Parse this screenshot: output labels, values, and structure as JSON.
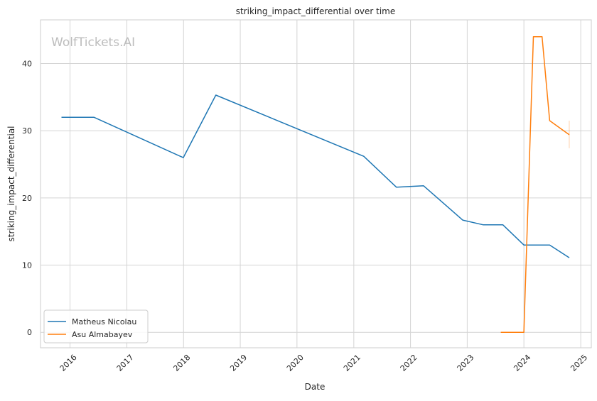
{
  "watermark": "WolfTickets.AI",
  "chart_data": {
    "type": "line",
    "title": "striking_impact_differential over time",
    "xlabel": "Date",
    "ylabel": "striking_impact_differential",
    "xlim": [
      "2015-06-25",
      "2025-03-10"
    ],
    "ylim": [
      -2.3,
      46.5
    ],
    "x_ticks": [
      "2016-01-01",
      "2017-01-01",
      "2018-01-01",
      "2019-01-01",
      "2020-01-01",
      "2021-01-01",
      "2022-01-01",
      "2023-01-01",
      "2024-01-01",
      "2025-01-01"
    ],
    "x_tick_labels": [
      "2016",
      "2017",
      "2018",
      "2019",
      "2020",
      "2021",
      "2022",
      "2023",
      "2024",
      "2025"
    ],
    "y_ticks": [
      0,
      10,
      20,
      30,
      40
    ],
    "y_tick_labels": [
      "0",
      "10",
      "20",
      "30",
      "40"
    ],
    "grid": true,
    "legend_position": "lower-left",
    "series": [
      {
        "name": "Matheus Nicolau",
        "color": "#1f77b4",
        "points": [
          [
            "2015-11-07",
            32.0
          ],
          [
            "2016-06-04",
            32.0
          ],
          [
            "2017-12-30",
            26.0
          ],
          [
            "2018-07-28",
            35.3
          ],
          [
            "2021-03-06",
            26.2
          ],
          [
            "2021-10-02",
            21.6
          ],
          [
            "2022-03-26",
            21.8
          ],
          [
            "2022-12-03",
            16.7
          ],
          [
            "2023-04-15",
            16.0
          ],
          [
            "2023-08-19",
            16.0
          ],
          [
            "2024-01-01",
            13.0
          ],
          [
            "2024-06-15",
            13.0
          ],
          [
            "2024-10-19",
            11.1
          ]
        ]
      },
      {
        "name": "Asu Almabayev",
        "color": "#ff7f0e",
        "points": [
          [
            "2023-08-05",
            0.0
          ],
          [
            "2024-01-01",
            0.0
          ],
          [
            "2024-03-02",
            44.0
          ],
          [
            "2024-04-27",
            44.0
          ],
          [
            "2024-06-15",
            31.5
          ],
          [
            "2024-10-19",
            29.4
          ]
        ],
        "error_bar": {
          "x": "2024-10-19",
          "low": 27.4,
          "high": 31.5
        }
      }
    ]
  }
}
